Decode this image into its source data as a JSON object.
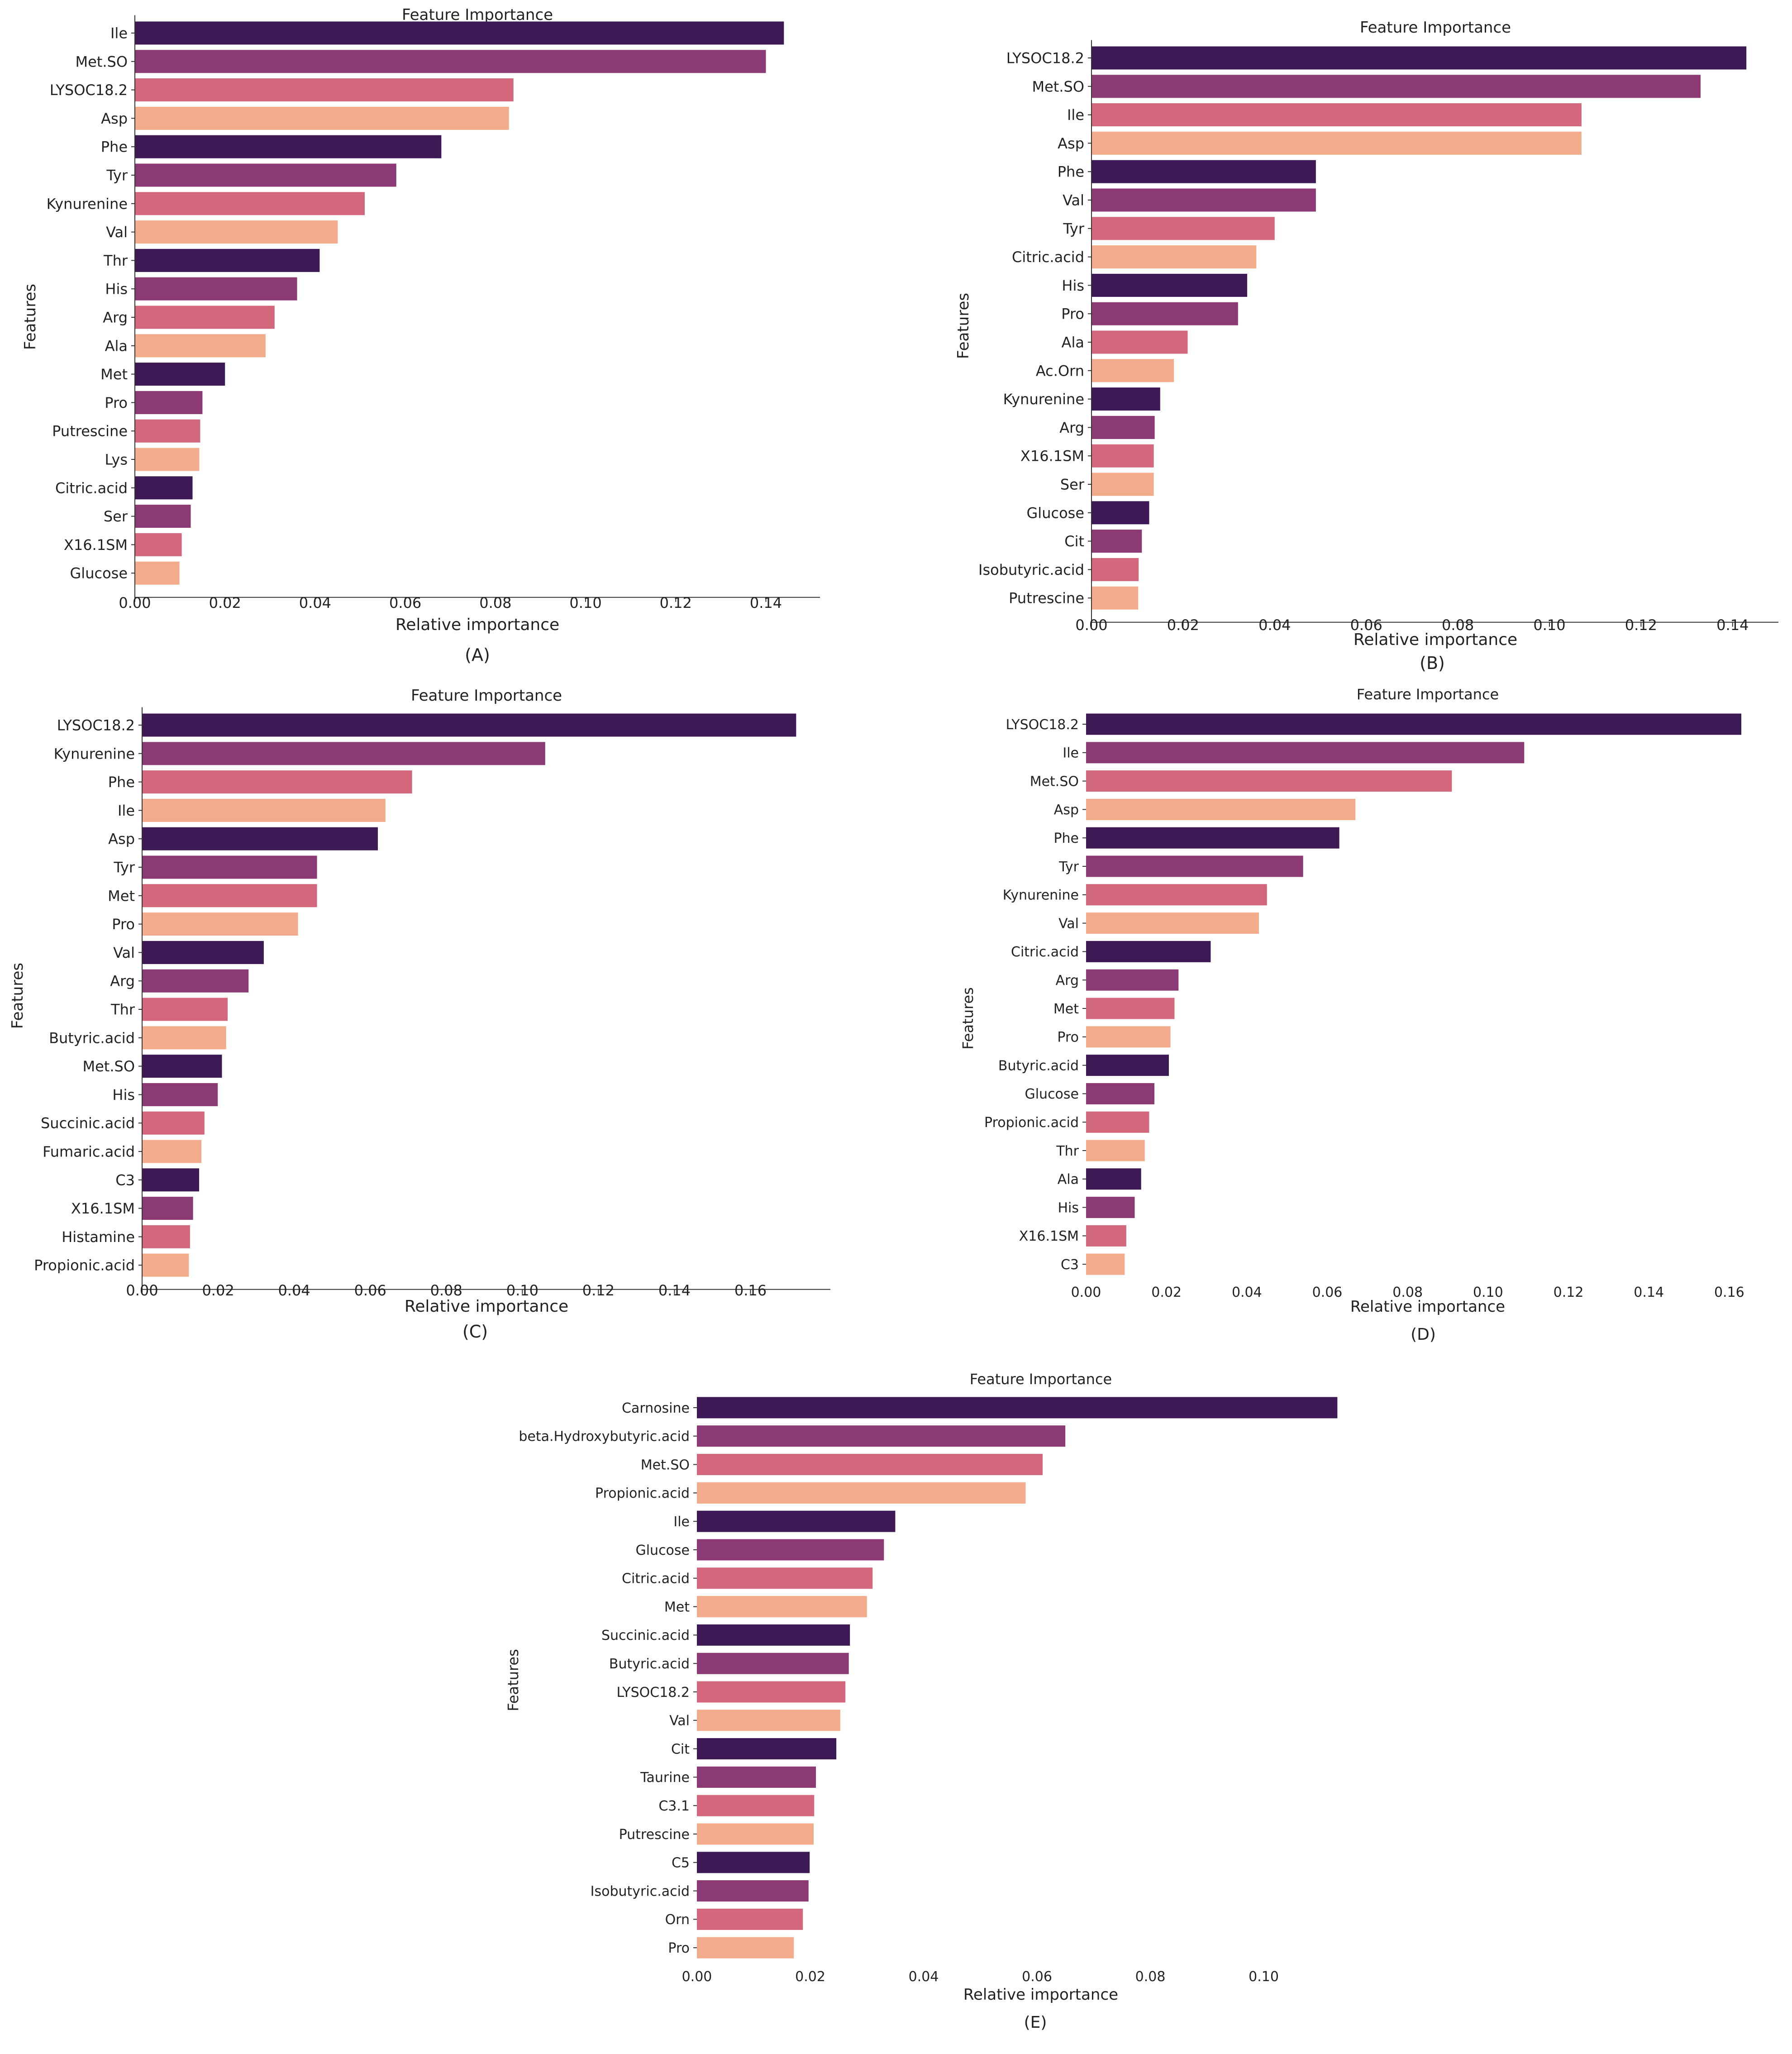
{
  "figure": {
    "name": "feature-importance-panels"
  },
  "colors": {
    "palette": [
      "#3d1a55",
      "#8b3a73",
      "#d3677c",
      "#f2ac8b"
    ],
    "axis": "#333333",
    "text": "#222222"
  },
  "chart_data": [
    {
      "type": "bar",
      "orientation": "horizontal",
      "panel": "(A)",
      "title": "Feature Importance",
      "xlabel": "Relative importance",
      "ylabel": "Features",
      "xlim": [
        0,
        0.152
      ],
      "xticks": [
        "0.00",
        "0.02",
        "0.04",
        "0.06",
        "0.08",
        "0.10",
        "0.12",
        "0.14"
      ],
      "categories": [
        "Ile",
        "Met.SO",
        "LYSOC18.2",
        "Asp",
        "Phe",
        "Tyr",
        "Kynurenine",
        "Val",
        "Thr",
        "His",
        "Arg",
        "Ala",
        "Met",
        "Pro",
        "Putrescine",
        "Lys",
        "Citric.acid",
        "Ser",
        "X16.1SM",
        "Glucose"
      ],
      "values": [
        0.144,
        0.14,
        0.084,
        0.083,
        0.068,
        0.058,
        0.051,
        0.045,
        0.041,
        0.036,
        0.031,
        0.029,
        0.02,
        0.015,
        0.0145,
        0.0143,
        0.0128,
        0.0124,
        0.0104,
        0.0099
      ]
    },
    {
      "type": "bar",
      "orientation": "horizontal",
      "panel": "(B)",
      "title": "Feature Importance",
      "xlabel": "Relative importance",
      "ylabel": "Features",
      "xlim": [
        0,
        0.15
      ],
      "xticks": [
        "0.00",
        "0.02",
        "0.04",
        "0.06",
        "0.08",
        "0.10",
        "0.12",
        "0.14"
      ],
      "categories": [
        "LYSOC18.2",
        "Met.SO",
        "Ile",
        "Asp",
        "Phe",
        "Val",
        "Tyr",
        "Citric.acid",
        "His",
        "Pro",
        "Ala",
        "Ac.Orn",
        "Kynurenine",
        "Arg",
        "X16.1SM",
        "Ser",
        "Glucose",
        "Cit",
        "Isobutyric.acid",
        "Putrescine"
      ],
      "values": [
        0.143,
        0.133,
        0.107,
        0.107,
        0.049,
        0.049,
        0.04,
        0.036,
        0.034,
        0.032,
        0.021,
        0.018,
        0.015,
        0.0138,
        0.0136,
        0.0136,
        0.0126,
        0.011,
        0.0103,
        0.0102
      ]
    },
    {
      "type": "bar",
      "orientation": "horizontal",
      "panel": "(C)",
      "title": "Feature Importance",
      "xlabel": "Relative importance",
      "ylabel": "Features",
      "xlim": [
        0,
        0.181
      ],
      "xticks": [
        "0.00",
        "0.02",
        "0.04",
        "0.06",
        "0.08",
        "0.10",
        "0.12",
        "0.14",
        "0.16"
      ],
      "categories": [
        "LYSOC18.2",
        "Kynurenine",
        "Phe",
        "Ile",
        "Asp",
        "Tyr",
        "Met",
        "Pro",
        "Val",
        "Arg",
        "Thr",
        "Butyric.acid",
        "Met.SO",
        "His",
        "Succinic.acid",
        "Fumaric.acid",
        "C3",
        "X16.1SM",
        "Histamine",
        "Propionic.acid"
      ],
      "values": [
        0.172,
        0.106,
        0.071,
        0.064,
        0.062,
        0.046,
        0.046,
        0.041,
        0.032,
        0.028,
        0.0225,
        0.0221,
        0.021,
        0.0199,
        0.0164,
        0.0156,
        0.015,
        0.0134,
        0.0126,
        0.0123
      ]
    },
    {
      "type": "bar",
      "orientation": "horizontal",
      "panel": "(D)",
      "title": "Feature Importance",
      "xlabel": "Relative importance",
      "ylabel": "Features",
      "xlim": [
        0,
        0.163
      ],
      "xticks": [
        "0.00",
        "0.02",
        "0.04",
        "0.06",
        "0.08",
        "0.10",
        "0.12",
        "0.14",
        "0.16"
      ],
      "categories": [
        "LYSOC18.2",
        "Ile",
        "Met.SO",
        "Asp",
        "Phe",
        "Tyr",
        "Kynurenine",
        "Val",
        "Citric.acid",
        "Arg",
        "Met",
        "Pro",
        "Butyric.acid",
        "Glucose",
        "Propionic.acid",
        "Thr",
        "Ala",
        "His",
        "X16.1SM",
        "C3"
      ],
      "values": [
        0.163,
        0.109,
        0.091,
        0.067,
        0.063,
        0.054,
        0.045,
        0.043,
        0.031,
        0.023,
        0.022,
        0.021,
        0.0206,
        0.017,
        0.0157,
        0.0146,
        0.0137,
        0.0121,
        0.01,
        0.0096
      ]
    },
    {
      "type": "bar",
      "orientation": "horizontal",
      "panel": "(E)",
      "title": "Feature Importance",
      "xlabel": "Relative importance",
      "ylabel": "Features",
      "xlim": [
        0,
        0.118
      ],
      "xticks": [
        "0.00",
        "0.02",
        "0.04",
        "0.06",
        "0.08",
        "0.10"
      ],
      "categories": [
        "Carnosine",
        "beta.Hydroxybutyric.acid",
        "Met.SO",
        "Propionic.acid",
        "Ile",
        "Glucose",
        "Citric.acid",
        "Met",
        "Succinic.acid",
        "Butyric.acid",
        "LYSOC18.2",
        "Val",
        "Cit",
        "Taurine",
        "C3.1",
        "Putrescine",
        "C5",
        "Isobutyric.acid",
        "Orn",
        "Pro"
      ],
      "values": [
        0.113,
        0.065,
        0.061,
        0.058,
        0.035,
        0.033,
        0.031,
        0.03,
        0.027,
        0.0268,
        0.0262,
        0.0253,
        0.0246,
        0.021,
        0.0207,
        0.0206,
        0.0199,
        0.0197,
        0.0187,
        0.0171
      ]
    }
  ]
}
